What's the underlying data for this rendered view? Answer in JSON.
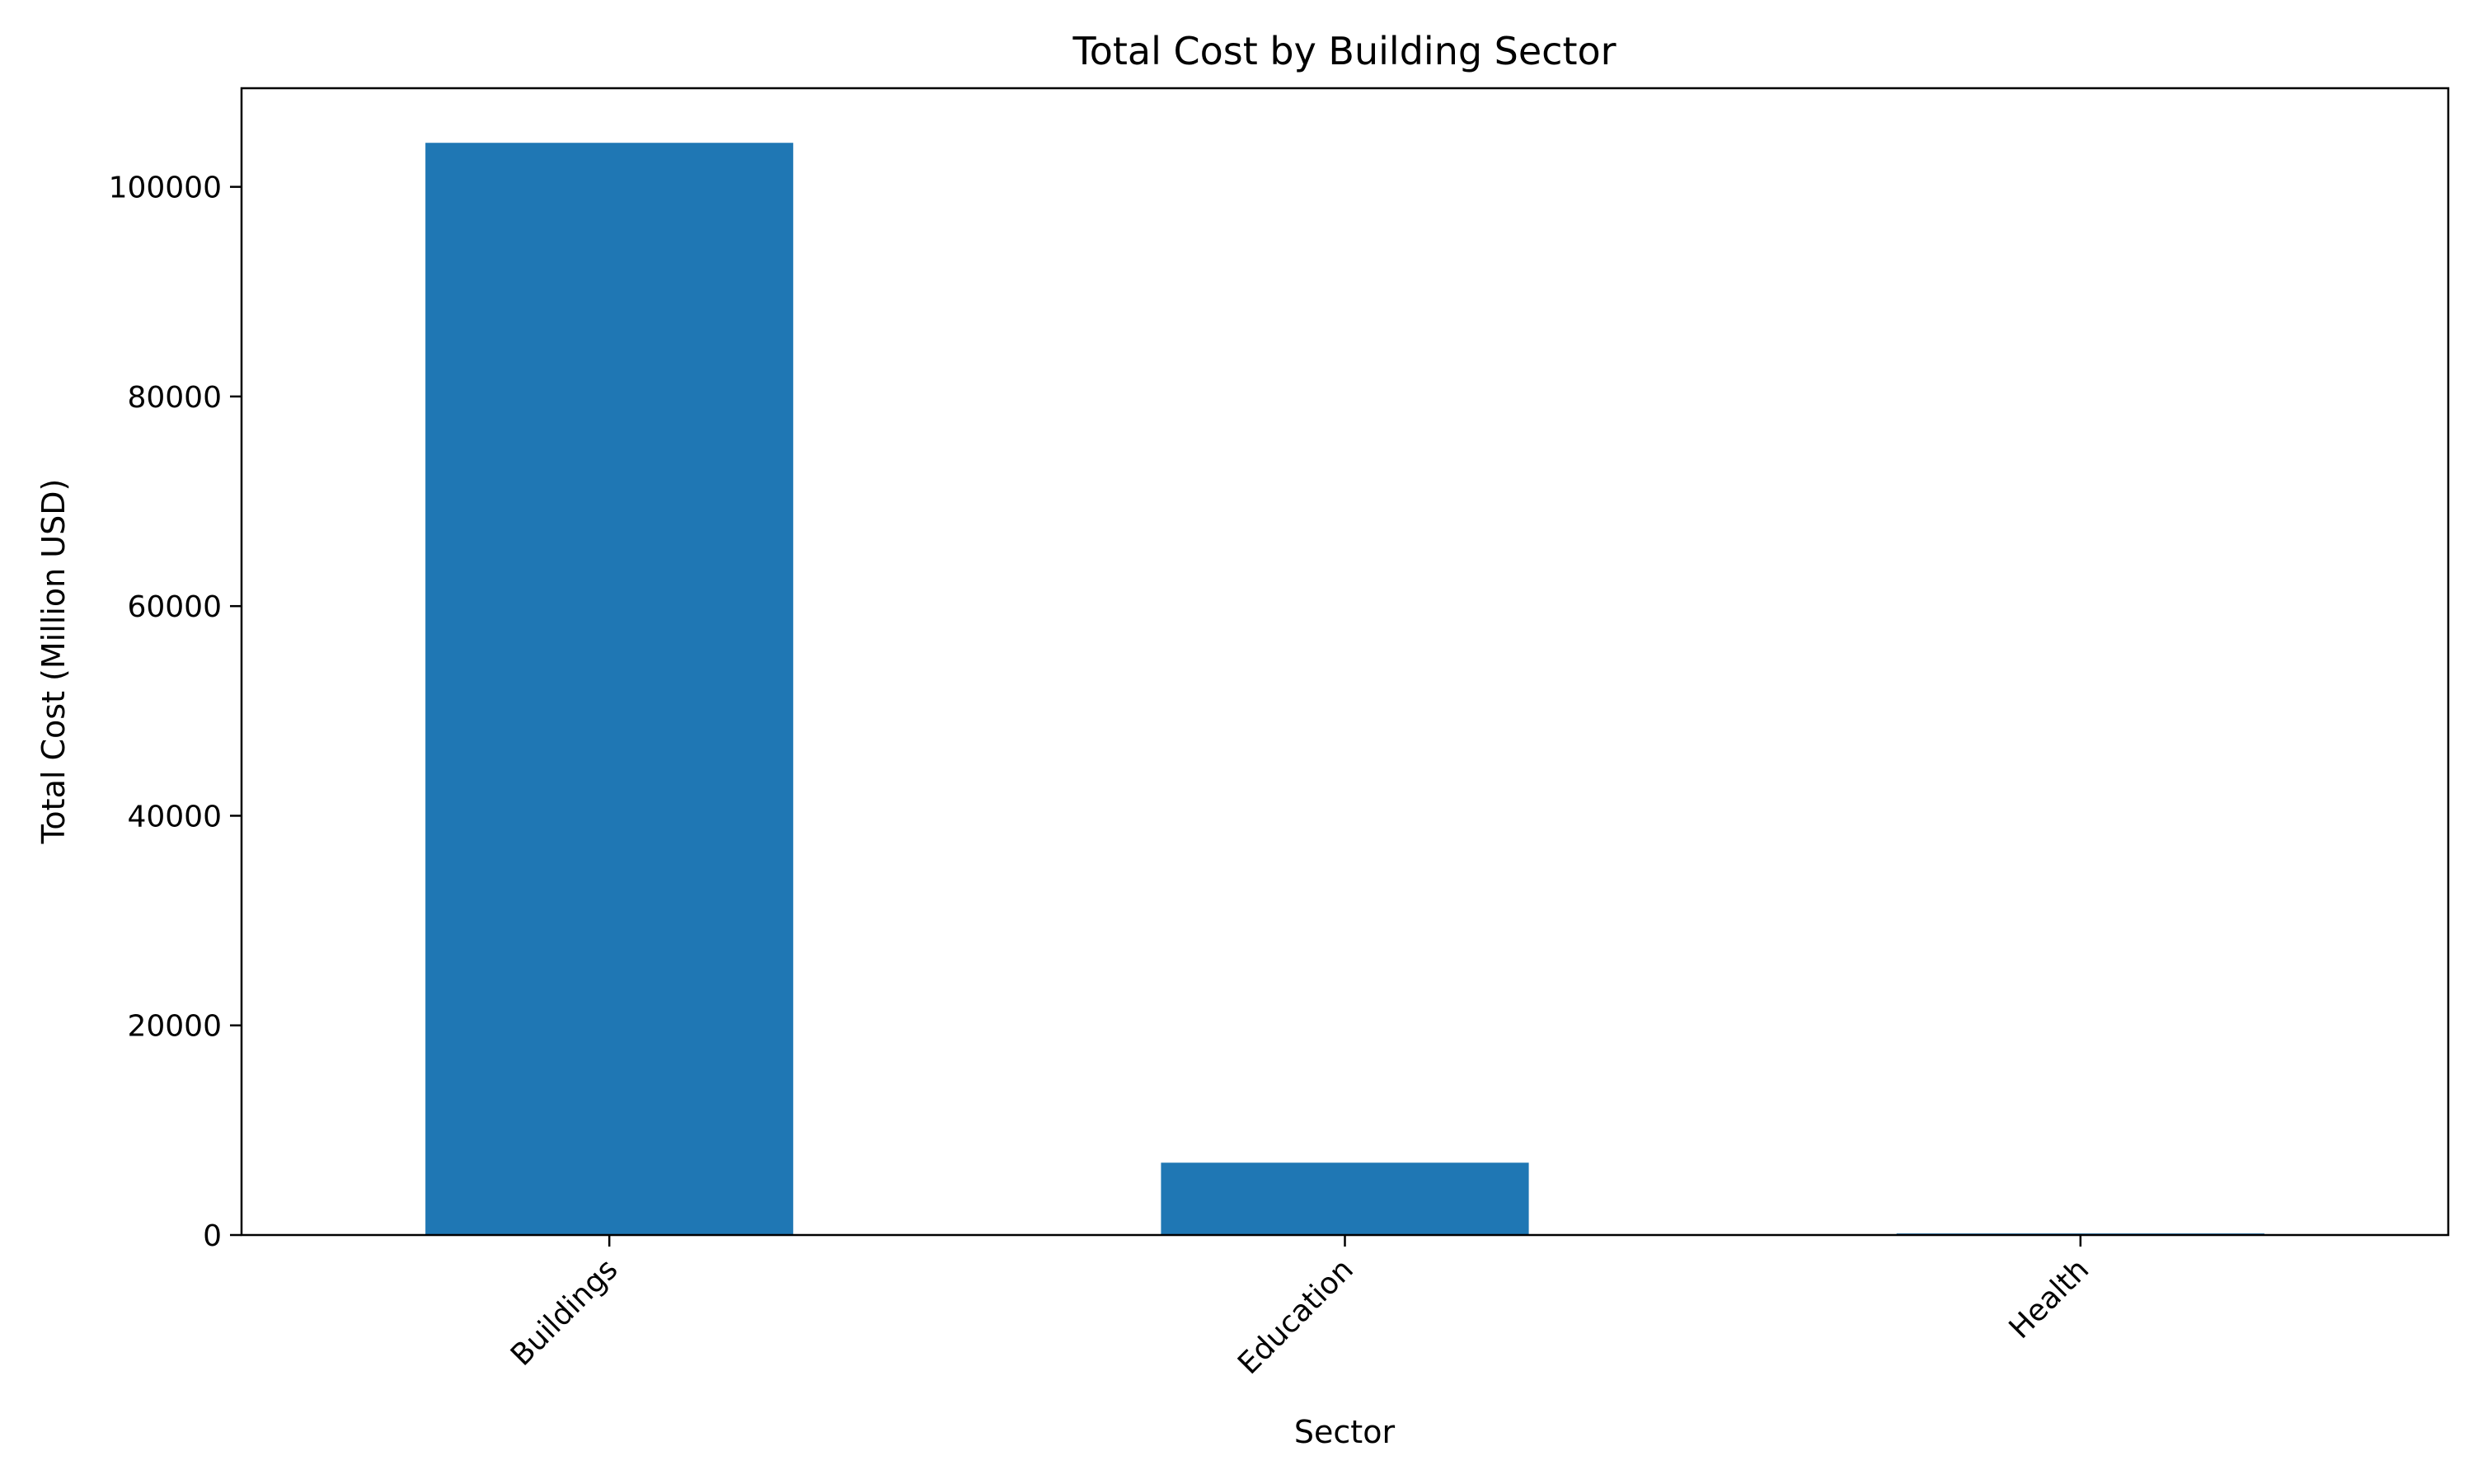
{
  "chart_data": {
    "type": "bar",
    "title": "Total Cost by Building Sector",
    "xlabel": "Sector",
    "ylabel": "Total Cost (Million USD)",
    "categories": [
      "Buildings",
      "Education",
      "Health"
    ],
    "values": [
      104200,
      6900,
      150
    ],
    "ylim": [
      0,
      109410
    ],
    "yticks": [
      0,
      20000,
      40000,
      60000,
      80000,
      100000
    ],
    "ytick_labels": [
      "0",
      "20000",
      "40000",
      "60000",
      "80000",
      "100000"
    ],
    "grid": false,
    "legend": "none",
    "bar_color": "#1f77b4",
    "xtick_rotation_deg": 45
  }
}
